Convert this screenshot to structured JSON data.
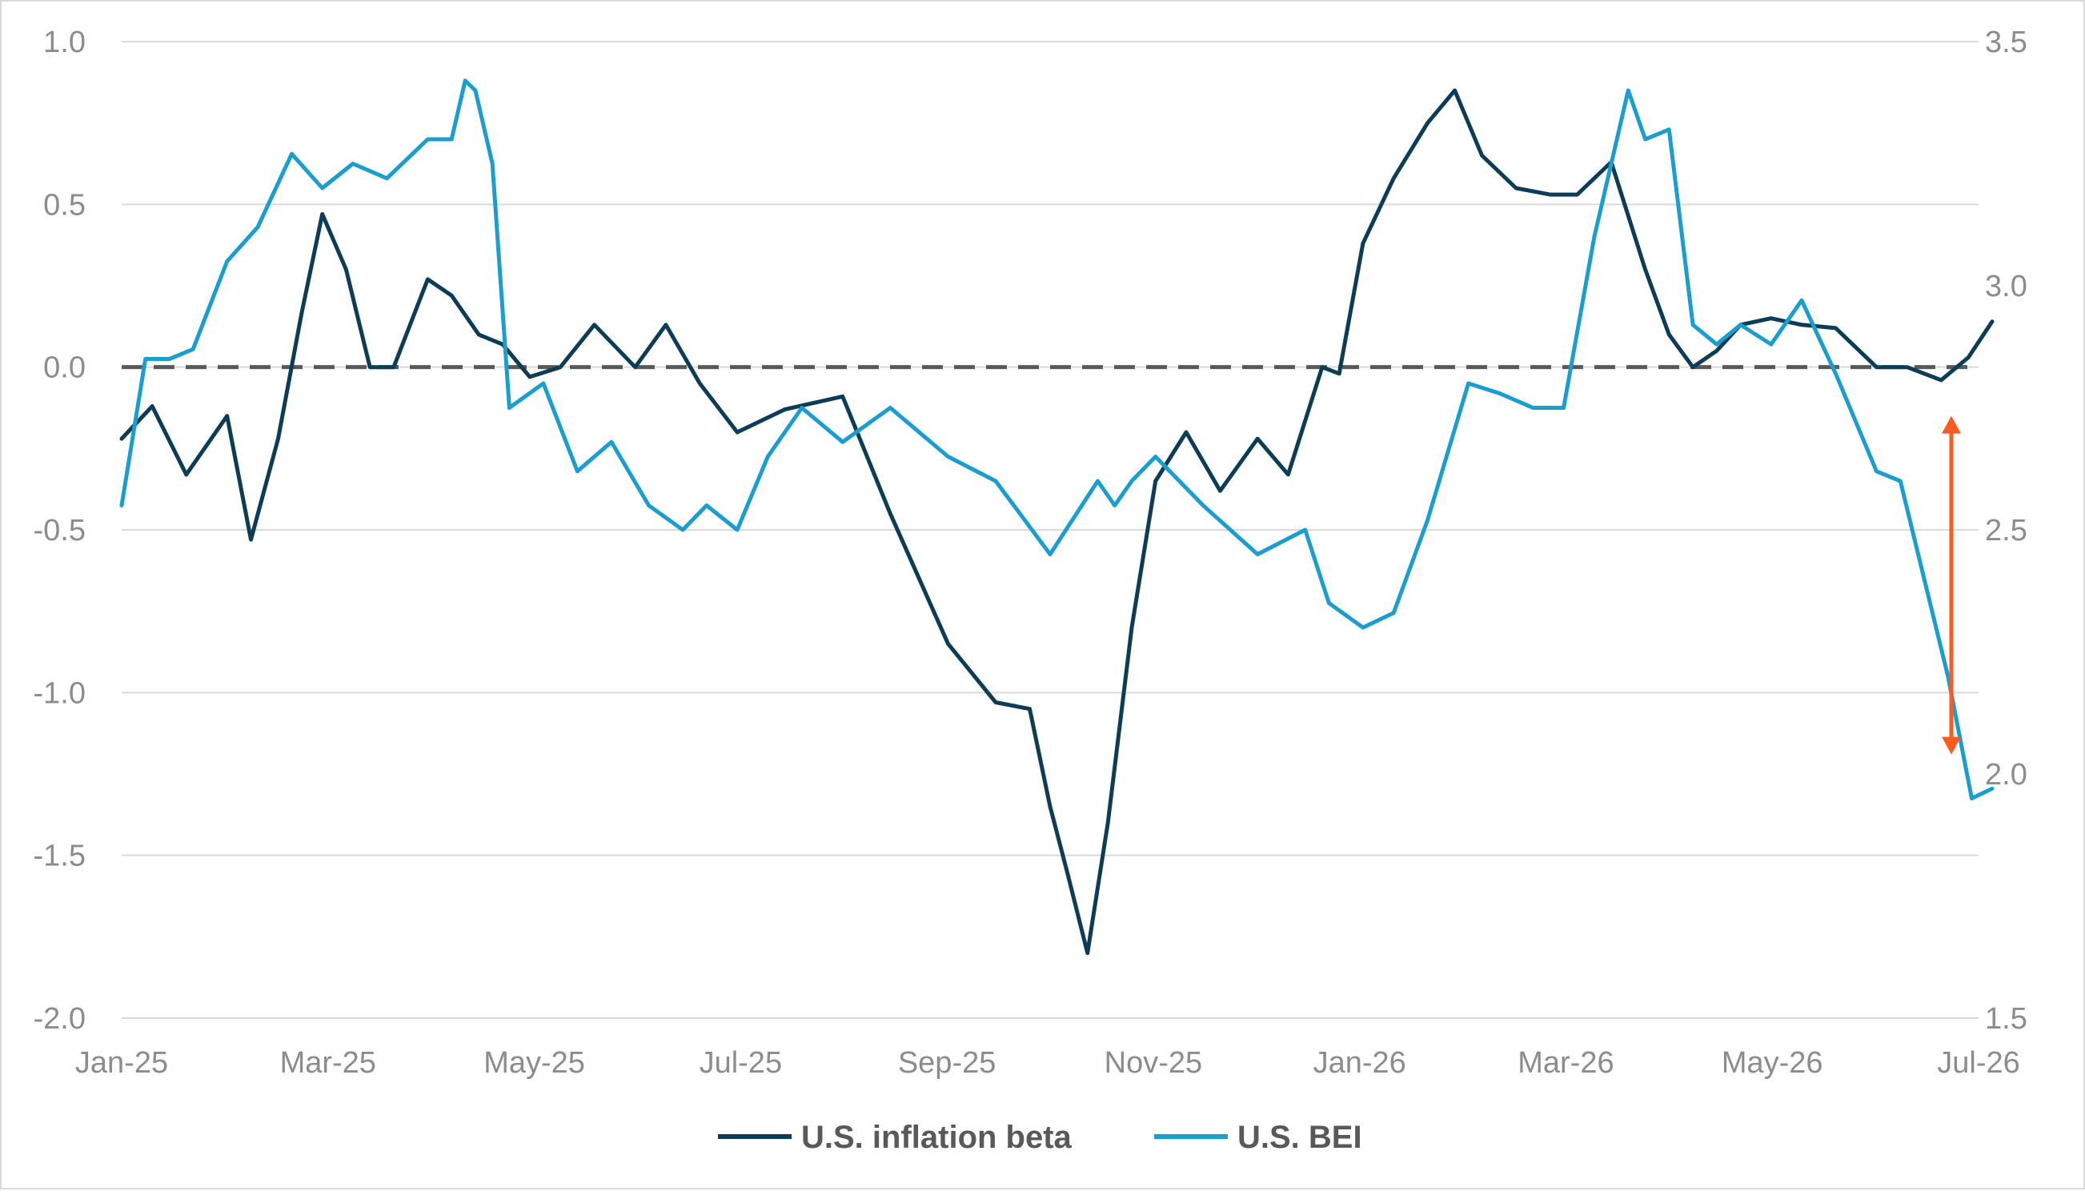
{
  "chart_data": {
    "type": "line",
    "x_tick_labels": [
      "Jan-25",
      "Mar-25",
      "May-25",
      "Jul-25",
      "Sep-25",
      "Nov-25",
      "Jan-26",
      "Mar-26",
      "May-26",
      "Jul-26"
    ],
    "x_range": [
      "2025-01",
      "2026-07"
    ],
    "y_left": {
      "range": [
        -2.0,
        1.0
      ],
      "tick_labels": [
        "1.0",
        "0.5",
        "0.0",
        "-0.5",
        "-1.0",
        "-1.5",
        "-2.0"
      ],
      "ticks": [
        1.0,
        0.5,
        0.0,
        -0.5,
        -1.0,
        -1.5,
        -2.0
      ]
    },
    "y_right": {
      "range": [
        1.5,
        3.5
      ],
      "tick_labels": [
        "3.5",
        "3.0",
        "2.5",
        "2.0",
        "1.5"
      ],
      "ticks": [
        3.5,
        3.0,
        2.5,
        2.0,
        1.5
      ]
    },
    "gridlines": "horizontal",
    "legend_position": "bottom",
    "reference_line": {
      "axis": "left",
      "value": 0.0,
      "style": "dashed",
      "color": "#595959"
    },
    "annotation_arrow": {
      "x": "2026-06-23",
      "from_left_value": -0.15,
      "to_left_value": -1.19,
      "color": "#ff5a1f",
      "style": "double-headed"
    },
    "series": [
      {
        "name": "U.S. inflation beta",
        "axis": "left",
        "color": "#0d3d56",
        "x": [
          "2025-01-01",
          "2025-01-10",
          "2025-01-20",
          "2025-02-01",
          "2025-02-08",
          "2025-02-16",
          "2025-02-23",
          "2025-03-01",
          "2025-03-08",
          "2025-03-15",
          "2025-03-22",
          "2025-04-01",
          "2025-04-08",
          "2025-04-16",
          "2025-04-23",
          "2025-05-01",
          "2025-05-10",
          "2025-05-20",
          "2025-06-01",
          "2025-06-10",
          "2025-06-20",
          "2025-07-01",
          "2025-07-15",
          "2025-08-01",
          "2025-08-15",
          "2025-09-01",
          "2025-09-15",
          "2025-09-25",
          "2025-10-01",
          "2025-10-06",
          "2025-10-12",
          "2025-10-18",
          "2025-10-25",
          "2025-11-01",
          "2025-11-10",
          "2025-11-20",
          "2025-12-01",
          "2025-12-10",
          "2025-12-20",
          "2025-12-25",
          "2026-01-01",
          "2026-01-10",
          "2026-01-20",
          "2026-01-28",
          "2026-02-05",
          "2026-02-15",
          "2026-02-25",
          "2026-03-05",
          "2026-03-15",
          "2026-03-25",
          "2026-04-01",
          "2026-04-08",
          "2026-04-15",
          "2026-04-22",
          "2026-05-01",
          "2026-05-10",
          "2026-05-20",
          "2026-06-01",
          "2026-06-10",
          "2026-06-20",
          "2026-06-28",
          "2026-07-05"
        ],
        "values": [
          -0.22,
          -0.12,
          -0.33,
          -0.15,
          -0.53,
          -0.22,
          0.17,
          0.47,
          0.3,
          0.0,
          0.0,
          0.27,
          0.22,
          0.1,
          0.07,
          -0.03,
          0.0,
          0.13,
          0.0,
          0.13,
          -0.05,
          -0.2,
          -0.13,
          -0.09,
          -0.45,
          -0.85,
          -1.03,
          -1.05,
          -1.35,
          -1.55,
          -1.8,
          -1.4,
          -0.8,
          -0.35,
          -0.2,
          -0.38,
          -0.22,
          -0.33,
          0.0,
          -0.02,
          0.38,
          0.58,
          0.75,
          0.85,
          0.65,
          0.55,
          0.53,
          0.53,
          0.63,
          0.3,
          0.1,
          0.0,
          0.05,
          0.13,
          0.15,
          0.13,
          0.12,
          0.0,
          0.0,
          -0.04,
          0.03,
          0.14
        ]
      },
      {
        "name": "U.S. BEI",
        "axis": "right",
        "color": "#1a9ecf",
        "x": [
          "2025-01-01",
          "2025-01-08",
          "2025-01-15",
          "2025-01-22",
          "2025-02-01",
          "2025-02-10",
          "2025-02-20",
          "2025-03-01",
          "2025-03-10",
          "2025-03-20",
          "2025-04-01",
          "2025-04-08",
          "2025-04-12",
          "2025-04-15",
          "2025-04-20",
          "2025-04-25",
          "2025-05-05",
          "2025-05-15",
          "2025-05-25",
          "2025-06-05",
          "2025-06-15",
          "2025-06-22",
          "2025-07-01",
          "2025-07-10",
          "2025-07-20",
          "2025-08-01",
          "2025-08-15",
          "2025-09-01",
          "2025-09-15",
          "2025-10-01",
          "2025-10-15",
          "2025-10-20",
          "2025-10-25",
          "2025-11-01",
          "2025-11-15",
          "2025-12-01",
          "2025-12-15",
          "2025-12-22",
          "2026-01-01",
          "2026-01-10",
          "2026-01-20",
          "2026-02-01",
          "2026-02-10",
          "2026-02-20",
          "2026-03-01",
          "2026-03-10",
          "2026-03-20",
          "2026-03-25",
          "2026-04-01",
          "2026-04-08",
          "2026-04-15",
          "2026-04-22",
          "2026-05-01",
          "2026-05-10",
          "2026-05-20",
          "2026-06-01",
          "2026-06-08",
          "2026-06-15",
          "2026-06-22",
          "2026-06-29",
          "2026-07-05"
        ],
        "values": [
          2.55,
          2.85,
          2.85,
          2.87,
          3.05,
          3.12,
          3.27,
          3.2,
          3.25,
          3.22,
          3.3,
          3.3,
          3.42,
          3.4,
          3.25,
          2.75,
          2.8,
          2.62,
          2.68,
          2.55,
          2.5,
          2.55,
          2.5,
          2.65,
          2.75,
          2.68,
          2.75,
          2.65,
          2.6,
          2.45,
          2.6,
          2.55,
          2.6,
          2.65,
          2.55,
          2.45,
          2.5,
          2.35,
          2.3,
          2.33,
          2.52,
          2.8,
          2.78,
          2.75,
          2.75,
          3.1,
          3.4,
          3.3,
          3.32,
          2.92,
          2.88,
          2.92,
          2.88,
          2.97,
          2.82,
          2.62,
          2.6,
          2.4,
          2.2,
          1.95,
          1.97
        ]
      }
    ]
  },
  "legend": [
    {
      "label": "U.S. inflation beta",
      "color": "#0d3d56"
    },
    {
      "label": "U.S. BEI",
      "color": "#1a9ecf"
    }
  ]
}
